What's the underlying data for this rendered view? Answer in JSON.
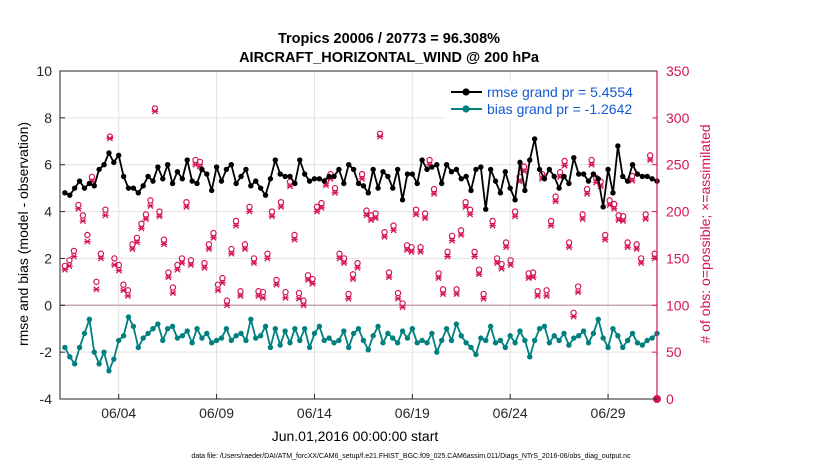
{
  "chart_data": {
    "type": "line",
    "title": "Tropics 20006 / 20773 = 96.308%",
    "subtitle": "AIRCRAFT_HORIZONTAL_WIND @ 200 hPa",
    "xlabel": "Jun.01,2016 00:00:00 start",
    "ylabel": "rmse and bias (model - observation)",
    "ylabel_right": "# of obs: o=possible; ×=assimilated",
    "footnote": "data file: /Users/raeder/DAI/ATM_forcXX/CAM6_setup/f.e21.FHIST_BGC.f09_025.CAM6assim.011/Diags_NTrS_2016-06/obs_diag_output.nc",
    "xlim": [
      0,
      30.5
    ],
    "ylim": [
      -4,
      10
    ],
    "ylim_right": [
      0,
      350
    ],
    "xticks": [
      3,
      8,
      13,
      18,
      23,
      28
    ],
    "xtick_labels": [
      "06/04",
      "06/09",
      "06/14",
      "06/19",
      "06/24",
      "06/29"
    ],
    "yticks": [
      -4,
      -2,
      0,
      2,
      4,
      6,
      8,
      10
    ],
    "yticks_right": [
      0,
      50,
      100,
      150,
      200,
      250,
      300,
      350
    ],
    "grid": true,
    "legend_position": "top-right",
    "colors": {
      "rmse": "#000000",
      "bias": "#00807f",
      "obs": "#d6135a",
      "zero_line": "#c8a7ad"
    },
    "series": [
      {
        "name": "rmse grand pr = 5.4554",
        "axis": "left",
        "values": [
          4.8,
          4.7,
          5.0,
          5.3,
          5.0,
          5.2,
          5.1,
          5.8,
          6.0,
          6.5,
          6.1,
          6.4,
          5.5,
          5.0,
          5.0,
          4.8,
          5.1,
          5.5,
          5.3,
          5.9,
          5.4,
          6.0,
          5.2,
          5.7,
          5.4,
          6.2,
          5.3,
          5.2,
          5.8,
          5.6,
          4.9,
          5.9,
          5.3,
          5.8,
          6.0,
          5.2,
          5.5,
          5.8,
          5.1,
          5.3,
          5.0,
          4.7,
          5.4,
          6.2,
          5.6,
          5.5,
          5.5,
          5.2,
          6.2,
          5.6,
          5.3,
          5.4,
          5.4,
          5.3,
          5.5,
          5.5,
          5.8,
          5.2,
          6.0,
          5.8,
          5.2,
          5.1,
          4.8,
          5.8,
          5.0,
          5.7,
          5.5,
          5.0,
          5.8,
          4.5,
          5.6,
          5.6,
          5.2,
          6.2,
          5.8,
          5.9,
          6.0,
          5.2,
          6.0,
          5.7,
          5.8,
          5.4,
          5.5,
          4.9,
          5.8,
          5.9,
          4.1,
          5.8,
          5.3,
          4.8,
          5.7,
          5.0,
          4.5,
          6.1,
          4.9,
          6.2,
          7.1,
          5.8,
          5.4,
          5.8,
          5.5,
          5.0,
          5.5,
          5.2,
          6.3,
          5.6,
          5.6,
          5.3,
          5.6,
          5.4,
          4.2,
          5.8,
          4.8,
          6.8,
          5.5,
          5.3,
          6.0,
          5.6,
          5.5,
          5.5,
          5.4,
          5.3,
          5.6,
          6.0,
          5.7,
          5.4,
          5.2,
          5.5,
          6.0,
          5.8,
          6.2,
          5.1,
          4.6,
          5.3,
          5.8,
          5.6,
          5.1,
          4.9,
          5.9,
          5.1,
          5.6,
          4.7,
          5.8,
          5.9,
          6.4,
          6.1,
          5.0,
          5.4,
          6.2,
          5.3,
          5.0,
          4.8,
          5.8,
          5.1,
          5.8,
          5.5,
          5.5,
          5.2,
          5.0,
          4.9,
          5.8,
          5.3,
          5.7,
          5.3,
          5.2,
          5.4,
          5.9,
          5.4,
          5.5,
          4.5,
          5.8,
          5.5,
          5.6,
          5.4,
          4.8,
          5.9,
          4.7,
          5.4,
          6.1,
          4.8,
          6.5,
          5.1,
          5.5,
          5.0,
          5.1,
          4.8,
          5.4,
          5.5,
          4.6,
          5.0,
          5.3,
          5.0,
          5.7,
          4.0,
          5.3
        ],
        "x_start": 0.25,
        "x_step": 0.25
      },
      {
        "name": "bias grand pr = -1.2642",
        "axis": "left",
        "values": [
          -1.8,
          -2.2,
          -2.5,
          -1.8,
          -1.2,
          -0.6,
          -2.0,
          -2.5,
          -2.0,
          -2.8,
          -2.3,
          -1.5,
          -1.3,
          -0.5,
          -0.9,
          -1.8,
          -1.4,
          -1.2,
          -1.0,
          -0.8,
          -1.5,
          -1.0,
          -0.9,
          -1.4,
          -1.3,
          -1.1,
          -1.6,
          -1.0,
          -1.4,
          -1.2,
          -1.6,
          -1.5,
          -1.4,
          -1.0,
          -1.5,
          -1.3,
          -1.2,
          -1.5,
          -0.6,
          -1.4,
          -1.3,
          -0.9,
          -1.8,
          -1.0,
          -1.7,
          -1.1,
          -1.6,
          -1.0,
          -1.5,
          -1.0,
          -1.8,
          -1.2,
          -0.9,
          -1.5,
          -1.4,
          -1.6,
          -1.5,
          -1.1,
          -1.8,
          -1.2,
          -1.0,
          -1.5,
          -1.9,
          -1.3,
          -0.9,
          -1.6,
          -1.2,
          -1.4,
          -1.6,
          -1.1,
          -1.4,
          -1.0,
          -1.6,
          -1.5,
          -1.6,
          -1.2,
          -2.0,
          -1.5,
          -1.0,
          -1.5,
          -0.8,
          -1.3,
          -1.6,
          -1.8,
          -2.1,
          -1.4,
          -1.5,
          -0.9,
          -1.6,
          -1.5,
          -1.8,
          -1.3,
          -1.6,
          -1.1,
          -1.5,
          -2.2,
          -1.5,
          -1.0,
          -0.9,
          -1.6,
          -1.3,
          -1.5,
          -1.2,
          -1.7,
          -1.4,
          -1.3,
          -1.1,
          -1.6,
          -1.2,
          -0.6,
          -1.4,
          -1.8,
          -1.0,
          -1.3,
          -1.8,
          -1.5,
          -1.2,
          -1.6,
          -1.7,
          -1.5,
          -1.4,
          -1.2,
          -1.6,
          -1.1,
          -1.8,
          -1.3,
          -1.5,
          -1.9,
          -1.2,
          -1.6,
          -2.0,
          -1.5,
          -1.1,
          -1.6,
          -1.4,
          -0.8,
          -1.9,
          -1.4,
          -1.6,
          -0.5,
          -1.2,
          -1.9,
          -1.5,
          -1.0,
          -2.1,
          -1.3,
          -1.6,
          -1.2,
          -1.8,
          -0.4,
          -2.0,
          -1.6,
          -1.2,
          -2.1,
          -1.4,
          -1.0,
          -1.7,
          -1.5,
          -0.3,
          -1.8,
          -2.0,
          -1.6,
          -1.1,
          -2.2,
          -1.6,
          -0.8,
          -1.4,
          -1.8,
          -1.2,
          -1.5,
          -1.6,
          -1.4,
          -1.8,
          -1.6,
          -1.0,
          -1.7,
          -1.3,
          -1.5,
          -0.9,
          -1.2,
          -0.3,
          -0.6,
          -0.9,
          -0.8,
          -0.9,
          -0.7,
          -1.0,
          -0.9,
          -0.6,
          -0.8,
          -1.0,
          -0.7,
          -1.2,
          -0.5,
          -0.9,
          -1.4
        ],
        "x_start": 0.25,
        "x_step": 0.25
      },
      {
        "name": "obs possible",
        "axis": "right",
        "marker": "o",
        "values": [
          142,
          148,
          158,
          207,
          196,
          175,
          237,
          125,
          155,
          202,
          280,
          150,
          143,
          122,
          116,
          165,
          172,
          187,
          197,
          212,
          310,
          200,
          170,
          135,
          119,
          143,
          150,
          210,
          148,
          255,
          253,
          145,
          165,
          177,
          122,
          129,
          105,
          160,
          190,
          115,
          165,
          205,
          150,
          115,
          114,
          155,
          200,
          127,
          210,
          114,
          232,
          175,
          113,
          105,
          132,
          128,
          205,
          209,
          233,
          240,
          225,
          155,
          150,
          112,
          133,
          145,
          240,
          201,
          196,
          198,
          283,
          178,
          135,
          185,
          113,
          102,
          164,
          162,
          202,
          162,
          198,
          255,
          224,
          134,
          117,
          157,
          174,
          117,
          180,
          210,
          202,
          157,
          138,
          112,
          310,
          190,
          150,
          144,
          167,
          148,
          200,
          237,
          248,
          134,
          135,
          115,
          240,
          116,
          190,
          216,
          242,
          254,
          167,
          92,
          120,
          197,
          224,
          255,
          236,
          232,
          175,
          212,
          208,
          196,
          195,
          167,
          238,
          165,
          150,
          197,
          260,
          155
        ],
        "x_start": 0.25,
        "x_step": 0.23
      },
      {
        "name": "obs assimilated",
        "axis": "right",
        "marker": "x",
        "values": [
          138,
          142,
          152,
          203,
          190,
          168,
          232,
          117,
          150,
          196,
          278,
          143,
          137,
          116,
          110,
          160,
          167,
          182,
          192,
          206,
          307,
          195,
          165,
          130,
          113,
          138,
          145,
          205,
          143,
          250,
          248,
          140,
          160,
          172,
          116,
          124,
          100,
          155,
          185,
          110,
          160,
          200,
          145,
          110,
          108,
          150,
          195,
          122,
          205,
          108,
          227,
          170,
          107,
          100,
          127,
          123,
          200,
          204,
          228,
          235,
          220,
          150,
          145,
          107,
          128,
          140,
          235,
          196,
          191,
          193,
          280,
          173,
          130,
          180,
          107,
          98,
          159,
          157,
          197,
          157,
          193,
          250,
          219,
          129,
          112,
          152,
          169,
          112,
          175,
          205,
          197,
          152,
          133,
          107,
          305,
          185,
          145,
          139,
          162,
          143,
          195,
          232,
          243,
          129,
          130,
          110,
          235,
          110,
          185,
          211,
          237,
          249,
          162,
          88,
          114,
          192,
          219,
          250,
          231,
          227,
          170,
          207,
          203,
          191,
          190,
          162,
          233,
          160,
          145,
          192,
          255,
          150
        ],
        "x_start": 0.25,
        "x_step": 0.23
      }
    ]
  }
}
